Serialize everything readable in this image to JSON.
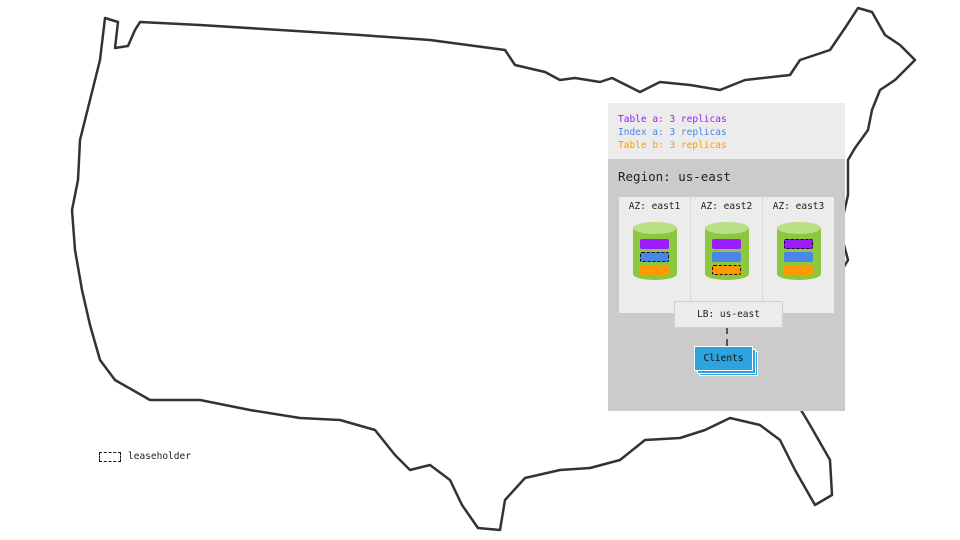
{
  "legend": [
    {
      "label": "Table a: 3 replicas",
      "color": "#9b1cff"
    },
    {
      "label": "Index a: 3 replicas",
      "color": "#4a86e8"
    },
    {
      "label": "Table b: 3 replicas",
      "color": "#ff9900"
    }
  ],
  "region": {
    "title": "Region: us-east"
  },
  "azs": [
    {
      "label": "AZ: east1",
      "leaseholder": "index-a"
    },
    {
      "label": "AZ: east2",
      "leaseholder": "table-b"
    },
    {
      "label": "AZ: east3",
      "leaseholder": "table-a"
    }
  ],
  "load_balancer": {
    "label": "LB: us-east"
  },
  "clients": {
    "label": "Clients"
  },
  "key": {
    "leaseholder_label": "leaseholder"
  },
  "colors": {
    "region_bg": "#cbcbcb",
    "az_bg": "#ececec",
    "database": "#8dc63f",
    "clients": "#2fa3dd"
  }
}
